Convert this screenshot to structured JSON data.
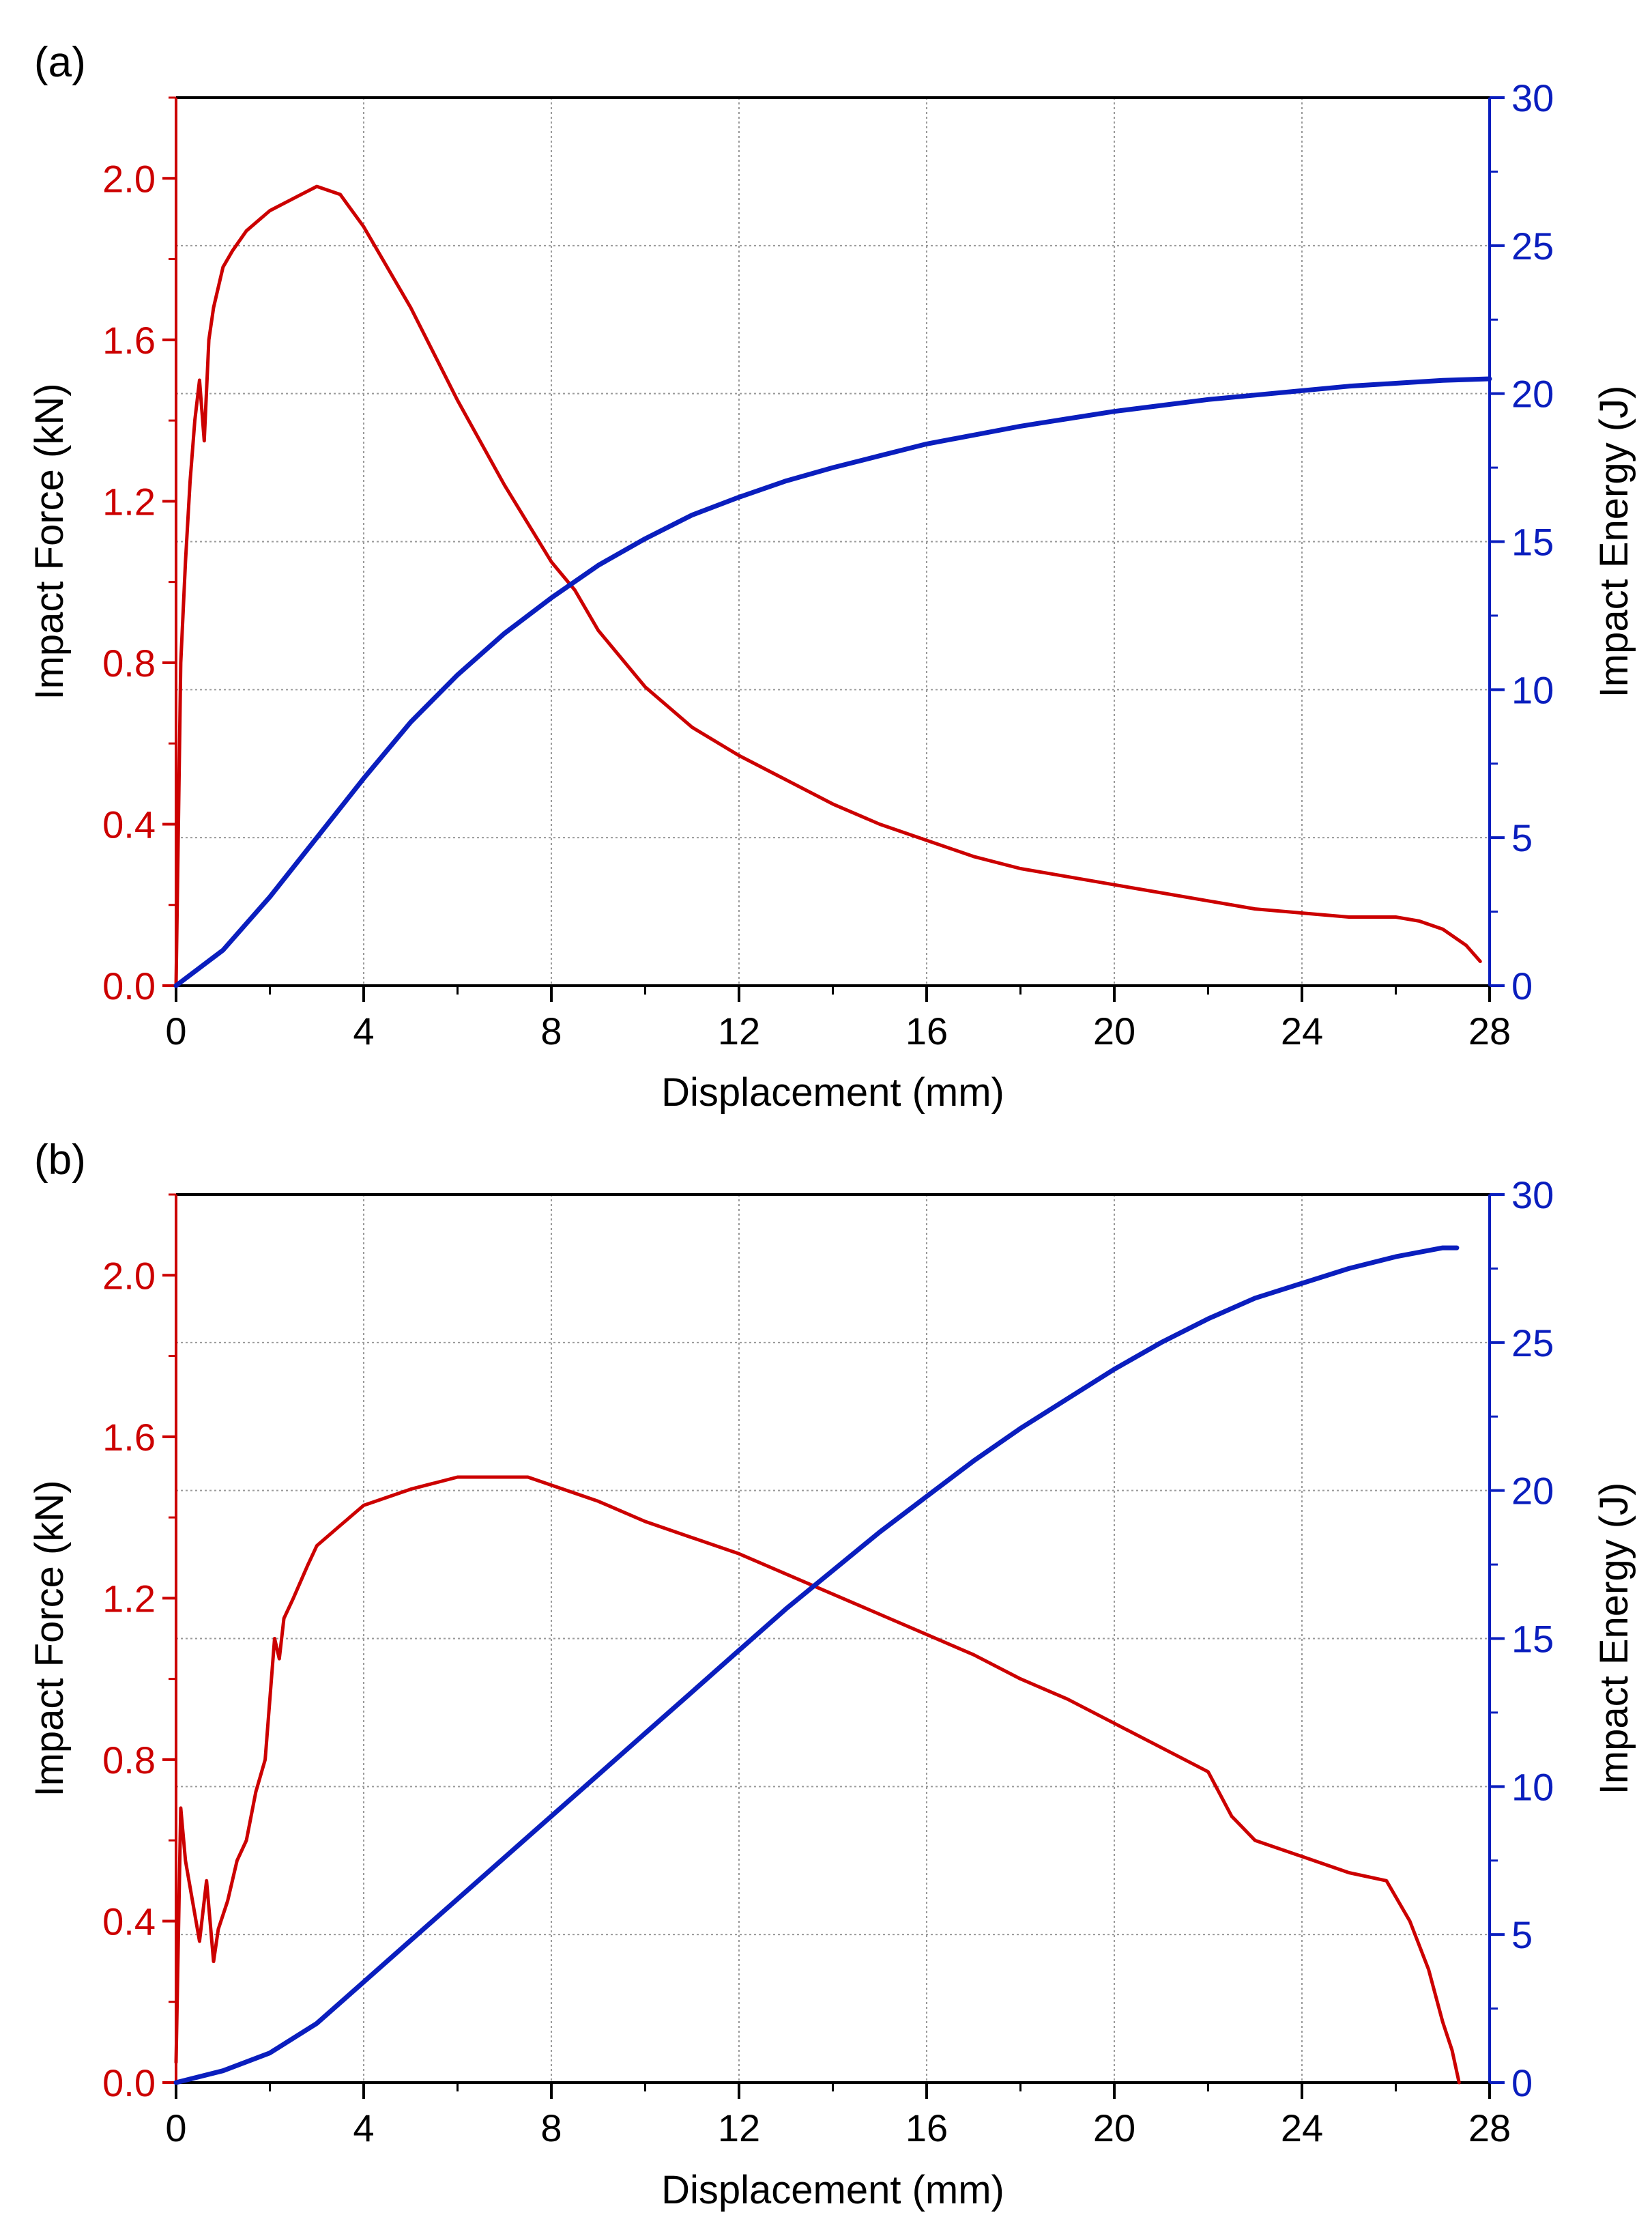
{
  "colors": {
    "force": "#cc0000",
    "energy": "#0a1ebe",
    "axis": "#000000",
    "grid": "#9a9a9a"
  },
  "chart_data": [
    {
      "panel_label": "(a)",
      "type": "line",
      "xlabel": "Displacement (mm)",
      "ylabel_left": "Impact Force (kN)",
      "ylabel_right": "Impact Energy (J)",
      "xlim": [
        0,
        28
      ],
      "ylim_left": [
        0,
        2.2
      ],
      "ylim_right": [
        0,
        30
      ],
      "x_ticks": [
        "0",
        "4",
        "8",
        "12",
        "16",
        "20",
        "24",
        "28"
      ],
      "y_left_ticks": [
        "0.0",
        "0.4",
        "0.8",
        "1.2",
        "1.6",
        "2.0"
      ],
      "y_right_ticks": [
        "0",
        "5",
        "10",
        "15",
        "20",
        "25",
        "30"
      ],
      "grid": true,
      "series": [
        {
          "name": "Impact Force",
          "axis": "left",
          "color": "#cc0000",
          "x": [
            0,
            0.1,
            0.2,
            0.3,
            0.4,
            0.5,
            0.6,
            0.7,
            0.8,
            1.0,
            1.2,
            1.5,
            2.0,
            2.5,
            3.0,
            3.5,
            4.0,
            5.0,
            6.0,
            7.0,
            8.0,
            8.5,
            9.0,
            10.0,
            11.0,
            12.0,
            13.0,
            14.0,
            15.0,
            16.0,
            17.0,
            18.0,
            19.0,
            20.0,
            21.0,
            22.0,
            23.0,
            24.0,
            25.0,
            26.0,
            26.5,
            27.0,
            27.5,
            27.8
          ],
          "y": [
            0,
            0.8,
            1.05,
            1.25,
            1.4,
            1.5,
            1.35,
            1.6,
            1.68,
            1.78,
            1.82,
            1.87,
            1.92,
            1.95,
            1.98,
            1.96,
            1.88,
            1.68,
            1.45,
            1.24,
            1.05,
            0.98,
            0.88,
            0.74,
            0.64,
            0.57,
            0.51,
            0.45,
            0.4,
            0.36,
            0.32,
            0.29,
            0.27,
            0.25,
            0.23,
            0.21,
            0.19,
            0.18,
            0.17,
            0.17,
            0.16,
            0.14,
            0.1,
            0.06
          ]
        },
        {
          "name": "Impact Energy",
          "axis": "right",
          "color": "#0a1ebe",
          "x": [
            0,
            1,
            2,
            3,
            4,
            5,
            6,
            7,
            8,
            9,
            10,
            11,
            12,
            13,
            14,
            15,
            16,
            17,
            18,
            19,
            20,
            21,
            22,
            23,
            24,
            25,
            26,
            27,
            28
          ],
          "y": [
            0,
            1.2,
            3.0,
            5.0,
            7.0,
            8.9,
            10.5,
            11.9,
            13.1,
            14.2,
            15.1,
            15.9,
            16.5,
            17.05,
            17.5,
            17.9,
            18.3,
            18.6,
            18.9,
            19.15,
            19.4,
            19.6,
            19.8,
            19.95,
            20.1,
            20.25,
            20.35,
            20.45,
            20.5
          ]
        }
      ]
    },
    {
      "panel_label": "(b)",
      "type": "line",
      "xlabel": "Displacement (mm)",
      "ylabel_left": "Impact Force (kN)",
      "ylabel_right": "Impact Energy (J)",
      "xlim": [
        0,
        28
      ],
      "ylim_left": [
        0,
        2.2
      ],
      "ylim_right": [
        0,
        30
      ],
      "x_ticks": [
        "0",
        "4",
        "8",
        "12",
        "16",
        "20",
        "24",
        "28"
      ],
      "y_left_ticks": [
        "0.0",
        "0.4",
        "0.8",
        "1.2",
        "1.6",
        "2.0"
      ],
      "y_right_ticks": [
        "0",
        "5",
        "10",
        "15",
        "20",
        "25",
        "30"
      ],
      "grid": true,
      "series": [
        {
          "name": "Impact Force",
          "axis": "left",
          "color": "#cc0000",
          "x": [
            0,
            0.1,
            0.2,
            0.35,
            0.5,
            0.65,
            0.8,
            0.9,
            1.1,
            1.3,
            1.5,
            1.7,
            1.9,
            2.0,
            2.1,
            2.2,
            2.3,
            2.5,
            2.8,
            3.0,
            3.5,
            4.0,
            5.0,
            6.0,
            7.0,
            7.5,
            8.0,
            9.0,
            10.0,
            11.0,
            12.0,
            13.0,
            14.0,
            15.0,
            16.0,
            17.0,
            18.0,
            19.0,
            20.0,
            21.0,
            22.0,
            22.5,
            23.0,
            24.0,
            25.0,
            25.8,
            26.3,
            26.7,
            27.0,
            27.2,
            27.35
          ],
          "y": [
            0.05,
            0.68,
            0.55,
            0.45,
            0.35,
            0.5,
            0.3,
            0.38,
            0.45,
            0.55,
            0.6,
            0.72,
            0.8,
            0.95,
            1.1,
            1.05,
            1.15,
            1.2,
            1.28,
            1.33,
            1.38,
            1.43,
            1.47,
            1.5,
            1.5,
            1.5,
            1.48,
            1.44,
            1.39,
            1.35,
            1.31,
            1.26,
            1.21,
            1.16,
            1.11,
            1.06,
            1.0,
            0.95,
            0.89,
            0.83,
            0.77,
            0.66,
            0.6,
            0.56,
            0.52,
            0.5,
            0.4,
            0.28,
            0.15,
            0.08,
            0.0
          ]
        },
        {
          "name": "Impact Energy",
          "axis": "right",
          "color": "#0a1ebe",
          "x": [
            0,
            1,
            2,
            3,
            4,
            5,
            6,
            7,
            8,
            9,
            10,
            11,
            12,
            13,
            14,
            15,
            16,
            17,
            18,
            19,
            20,
            21,
            22,
            23,
            24,
            25,
            26,
            27,
            27.3
          ],
          "y": [
            0,
            0.4,
            1.0,
            2.0,
            3.4,
            4.8,
            6.2,
            7.6,
            9.0,
            10.4,
            11.8,
            13.2,
            14.6,
            16.0,
            17.3,
            18.6,
            19.8,
            21.0,
            22.1,
            23.1,
            24.1,
            25.0,
            25.8,
            26.5,
            27.0,
            27.5,
            27.9,
            28.2,
            28.2
          ]
        }
      ]
    }
  ]
}
